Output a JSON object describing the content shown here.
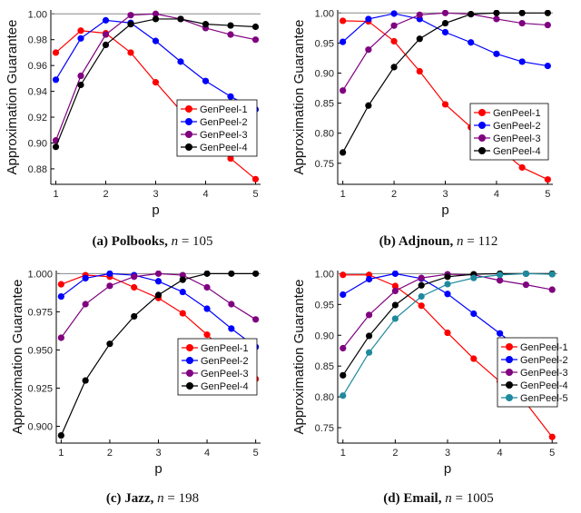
{
  "chart_data": [
    {
      "type": "line",
      "caption": {
        "prefix": "(a) ",
        "name": "Polbooks",
        "sep": ", ",
        "var": "n",
        "eq": " = 105"
      },
      "xlabel": "p",
      "ylabel": "Approximation Guarantee",
      "xlim": [
        0.9,
        5.1
      ],
      "ylim": [
        0.868,
        1.003
      ],
      "xticks": [
        1,
        2,
        3,
        4,
        5
      ],
      "yticks": [
        0.88,
        0.9,
        0.92,
        0.94,
        0.96,
        0.98,
        1.0
      ],
      "ytick_labels": [
        "0.88",
        "0.90",
        "0.92",
        "0.94",
        "0.96",
        "0.98",
        "1.00"
      ],
      "reference_line": 1.0,
      "legend_placement": "center-right",
      "x": [
        1,
        1.5,
        2,
        2.5,
        3,
        3.5,
        4,
        4.5,
        5
      ],
      "series": [
        {
          "name": "GenPeel-1",
          "color": "#ff0000",
          "values": [
            0.97,
            0.987,
            0.985,
            0.97,
            0.947,
            0.925,
            0.905,
            0.888,
            0.872
          ]
        },
        {
          "name": "GenPeel-2",
          "color": "#0000ff",
          "values": [
            0.949,
            0.981,
            0.995,
            0.993,
            0.979,
            0.963,
            0.948,
            0.936,
            0.926
          ]
        },
        {
          "name": "GenPeel-3",
          "color": "#800080",
          "values": [
            0.902,
            0.952,
            0.984,
            0.999,
            1.0,
            0.996,
            0.989,
            0.984,
            0.98
          ]
        },
        {
          "name": "GenPeel-4",
          "color": "#000000",
          "values": [
            0.897,
            0.945,
            0.976,
            0.992,
            0.996,
            0.996,
            0.992,
            0.991,
            0.99
          ]
        }
      ]
    },
    {
      "type": "line",
      "caption": {
        "prefix": "(b) ",
        "name": "Adjnoun",
        "sep": ", ",
        "var": "n",
        "eq": " = 112"
      },
      "xlabel": "p",
      "ylabel": "Approximation Guarantee",
      "xlim": [
        0.9,
        5.1
      ],
      "ylim": [
        0.715,
        1.005
      ],
      "xticks": [
        1,
        2,
        3,
        4,
        5
      ],
      "yticks": [
        0.75,
        0.8,
        0.85,
        0.9,
        0.95,
        1.0
      ],
      "ytick_labels": [
        "0.75",
        "0.80",
        "0.85",
        "0.90",
        "0.95",
        "1.00"
      ],
      "reference_line": 1.0,
      "legend_placement": "center-right",
      "x": [
        1,
        1.5,
        2,
        2.5,
        3,
        3.5,
        4,
        4.5,
        5
      ],
      "series": [
        {
          "name": "GenPeel-1",
          "color": "#ff0000",
          "values": [
            0.987,
            0.986,
            0.953,
            0.903,
            0.848,
            0.81,
            0.778,
            0.743,
            0.723
          ]
        },
        {
          "name": "GenPeel-2",
          "color": "#0000ff",
          "values": [
            0.952,
            0.99,
            0.999,
            0.99,
            0.968,
            0.951,
            0.932,
            0.919,
            0.912
          ]
        },
        {
          "name": "GenPeel-3",
          "color": "#800080",
          "values": [
            0.871,
            0.939,
            0.979,
            0.997,
            1.0,
            0.998,
            0.99,
            0.983,
            0.98
          ]
        },
        {
          "name": "GenPeel-4",
          "color": "#000000",
          "values": [
            0.768,
            0.846,
            0.91,
            0.957,
            0.983,
            0.998,
            1.0,
            1.0,
            1.0
          ]
        }
      ]
    },
    {
      "type": "line",
      "caption": {
        "prefix": "(c) ",
        "name": "Jazz",
        "sep": ", ",
        "var": "n",
        "eq": " = 198"
      },
      "xlabel": "p",
      "ylabel": "Approximation Guarantee",
      "xlim": [
        0.9,
        5.1
      ],
      "ylim": [
        0.889,
        1.002
      ],
      "xticks": [
        1,
        2,
        3,
        4,
        5
      ],
      "yticks": [
        0.9,
        0.925,
        0.95,
        0.975,
        1.0
      ],
      "ytick_labels": [
        "0.900",
        "0.925",
        "0.950",
        "0.975",
        "1.000"
      ],
      "reference_line": 1.0,
      "legend_placement": "center-right",
      "x": [
        1,
        1.5,
        2,
        2.5,
        3,
        3.5,
        4,
        4.5,
        5
      ],
      "series": [
        {
          "name": "GenPeel-1",
          "color": "#ff0000",
          "values": [
            0.993,
            0.999,
            0.998,
            0.991,
            0.984,
            0.974,
            0.96,
            0.945,
            0.931
          ]
        },
        {
          "name": "GenPeel-2",
          "color": "#0000ff",
          "values": [
            0.985,
            0.997,
            1.0,
            0.999,
            0.995,
            0.988,
            0.977,
            0.964,
            0.952
          ]
        },
        {
          "name": "GenPeel-3",
          "color": "#800080",
          "values": [
            0.958,
            0.98,
            0.992,
            0.998,
            1.0,
            0.999,
            0.991,
            0.98,
            0.97
          ]
        },
        {
          "name": "GenPeel-4",
          "color": "#000000",
          "values": [
            0.894,
            0.93,
            0.954,
            0.972,
            0.986,
            0.996,
            1.0,
            1.0,
            1.0
          ]
        }
      ]
    },
    {
      "type": "line",
      "caption": {
        "prefix": "(d) ",
        "name": "Email",
        "sep": ", ",
        "var": "n",
        "eq": " = 1005"
      },
      "xlabel": "p",
      "ylabel": "Approximation Guarantee",
      "xlim": [
        0.9,
        5.1
      ],
      "ylim": [
        0.725,
        1.005
      ],
      "xticks": [
        1,
        2,
        3,
        4,
        5
      ],
      "yticks": [
        0.75,
        0.8,
        0.85,
        0.9,
        0.95,
        1.0
      ],
      "ytick_labels": [
        "0.75",
        "0.80",
        "0.85",
        "0.90",
        "0.95",
        "1.00"
      ],
      "reference_line": 1.0,
      "legend_placement": "bottom-right",
      "x": [
        1,
        1.5,
        2,
        2.5,
        3,
        3.5,
        4,
        4.5,
        5
      ],
      "series": [
        {
          "name": "GenPeel-1",
          "color": "#ff0000",
          "values": [
            0.998,
            0.998,
            0.98,
            0.948,
            0.904,
            0.862,
            0.825,
            0.79,
            0.735
          ]
        },
        {
          "name": "GenPeel-2",
          "color": "#0000ff",
          "values": [
            0.966,
            0.991,
            1.0,
            0.992,
            0.967,
            0.935,
            0.903,
            0.87,
            0.845
          ]
        },
        {
          "name": "GenPeel-3",
          "color": "#800080",
          "values": [
            0.879,
            0.933,
            0.972,
            0.993,
            0.999,
            0.998,
            0.989,
            0.982,
            0.974
          ]
        },
        {
          "name": "GenPeel-4",
          "color": "#000000",
          "values": [
            0.835,
            0.899,
            0.949,
            0.981,
            0.995,
            0.999,
            1.0,
            1.0,
            1.0
          ]
        },
        {
          "name": "GenPeel-5",
          "color": "#1f8a9e",
          "values": [
            0.802,
            0.872,
            0.927,
            0.963,
            0.983,
            0.993,
            0.998,
            1.0,
            0.999
          ]
        }
      ]
    }
  ]
}
